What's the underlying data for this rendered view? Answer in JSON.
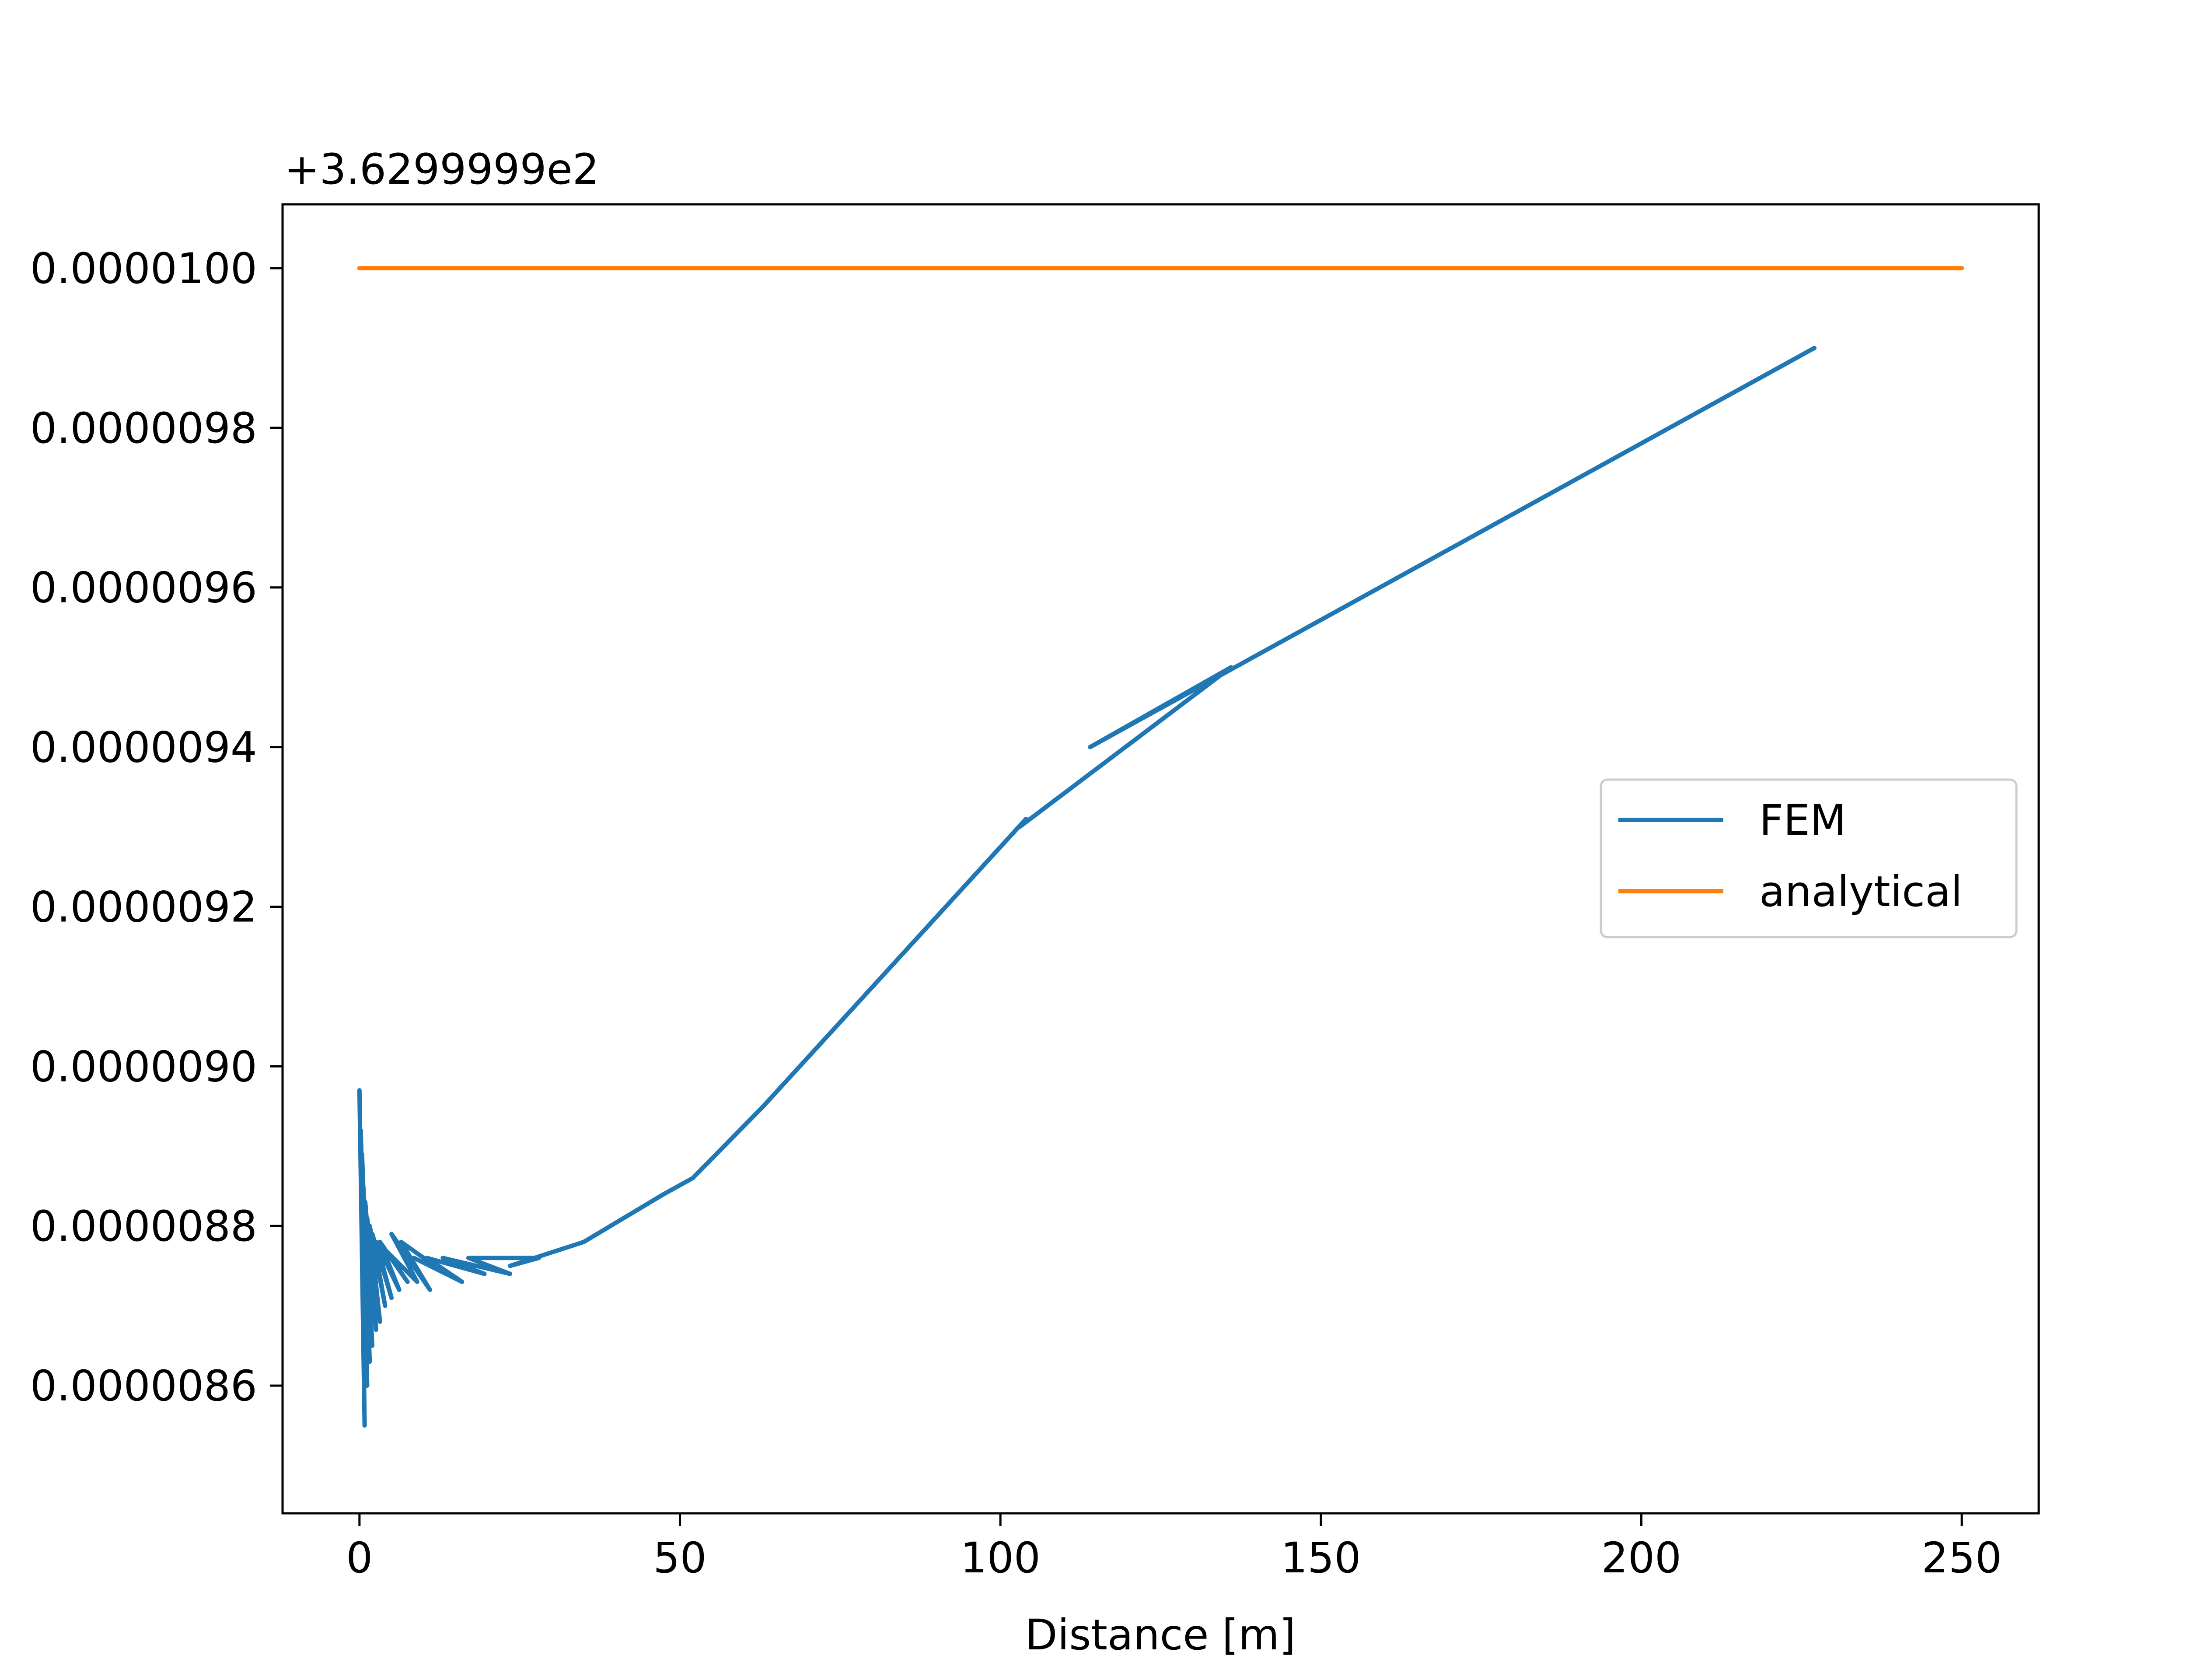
{
  "chart_data": {
    "type": "line",
    "offset_text": "+3.6299999e2",
    "xlabel": "Distance [m]",
    "ylabel": "",
    "xlim": [
      -12,
      262
    ],
    "ylim": [
      8.44e-06,
      1.008e-05
    ],
    "x_ticks": [
      0,
      50,
      100,
      150,
      200,
      250
    ],
    "x_tick_labels": [
      "0",
      "50",
      "100",
      "150",
      "200",
      "250"
    ],
    "y_ticks": [
      8.6e-06,
      8.8e-06,
      9e-06,
      9.2e-06,
      9.4e-06,
      9.6e-06,
      9.8e-06,
      1e-05
    ],
    "y_tick_labels": [
      "0.0000086",
      "0.0000088",
      "0.0000090",
      "0.0000092",
      "0.0000094",
      "0.0000096",
      "0.0000098",
      "0.0000100"
    ],
    "grid": false,
    "legend_position": "center-right",
    "series": [
      {
        "name": "FEM",
        "color": "#1f77b4",
        "x": [
          0.0,
          0.8,
          0.2,
          1.2,
          0.4,
          1.6,
          0.6,
          2.0,
          0.9,
          2.6,
          1.2,
          3.2,
          1.6,
          4.0,
          2.0,
          5.0,
          2.6,
          6.2,
          3.2,
          7.5,
          4.0,
          9.0,
          5.0,
          11.0,
          6.5,
          13.5,
          8.5,
          16.0,
          10.5,
          19.5,
          13.0,
          23.5,
          17.0,
          28.0,
          23.5,
          35.0,
          47.5,
          52.0,
          63.0,
          104.0,
          103.0,
          136.0,
          114.0,
          227.0
        ],
        "y": [
          8.97e-06,
          8.55e-06,
          8.92e-06,
          8.6e-06,
          8.89e-06,
          8.63e-06,
          8.85e-06,
          8.65e-06,
          8.83e-06,
          8.67e-06,
          8.81e-06,
          8.68e-06,
          8.8e-06,
          8.7e-06,
          8.79e-06,
          8.71e-06,
          8.78e-06,
          8.72e-06,
          8.78e-06,
          8.73e-06,
          8.77e-06,
          8.73e-06,
          8.79e-06,
          8.72e-06,
          8.78e-06,
          8.74e-06,
          8.76e-06,
          8.73e-06,
          8.76e-06,
          8.74e-06,
          8.76e-06,
          8.74e-06,
          8.76e-06,
          8.76e-06,
          8.75e-06,
          8.78e-06,
          8.84e-06,
          8.86e-06,
          8.95e-06,
          9.31e-06,
          9.3e-06,
          9.5e-06,
          9.4e-06,
          9.9e-06
        ]
      },
      {
        "name": "analytical",
        "color": "#ff7f0e",
        "x": [
          0,
          250
        ],
        "y": [
          1e-05,
          1e-05
        ]
      }
    ]
  }
}
